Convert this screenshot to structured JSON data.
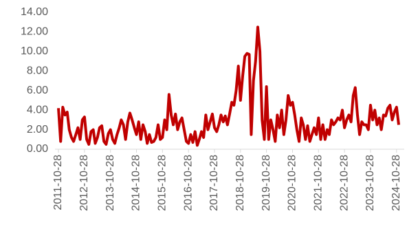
{
  "chart_data": {
    "type": "line",
    "x": [
      "2011-10-28",
      "2011-11-28",
      "2011-12-28",
      "2012-01-28",
      "2012-02-28",
      "2012-03-28",
      "2012-04-28",
      "2012-05-28",
      "2012-06-28",
      "2012-07-28",
      "2012-08-28",
      "2012-09-28",
      "2012-10-28",
      "2012-11-28",
      "2012-12-28",
      "2013-01-28",
      "2013-02-28",
      "2013-03-28",
      "2013-04-28",
      "2013-05-28",
      "2013-06-28",
      "2013-07-28",
      "2013-08-28",
      "2013-09-28",
      "2013-10-28",
      "2013-11-28",
      "2013-12-28",
      "2014-01-28",
      "2014-02-28",
      "2014-03-28",
      "2014-04-28",
      "2014-05-28",
      "2014-06-28",
      "2014-07-28",
      "2014-08-28",
      "2014-09-28",
      "2014-10-28",
      "2014-11-28",
      "2014-12-28",
      "2015-01-28",
      "2015-02-28",
      "2015-03-28",
      "2015-04-28",
      "2015-05-28",
      "2015-06-28",
      "2015-07-28",
      "2015-08-28",
      "2015-09-28",
      "2015-10-28",
      "2015-11-28",
      "2015-12-28",
      "2016-01-28",
      "2016-02-28",
      "2016-03-28",
      "2016-04-28",
      "2016-05-28",
      "2016-06-28",
      "2016-07-28",
      "2016-08-28",
      "2016-09-28",
      "2016-10-28",
      "2016-11-28",
      "2016-12-28",
      "2017-01-28",
      "2017-02-28",
      "2017-03-28",
      "2017-04-28",
      "2017-05-28",
      "2017-06-28",
      "2017-07-28",
      "2017-08-28",
      "2017-09-28",
      "2017-10-28",
      "2017-11-28",
      "2017-12-28",
      "2018-01-28",
      "2018-02-28",
      "2018-03-28",
      "2018-04-28",
      "2018-05-28",
      "2018-06-28",
      "2018-07-28",
      "2018-08-28",
      "2018-09-28",
      "2018-10-28",
      "2018-11-28",
      "2018-12-28",
      "2019-01-28",
      "2019-02-28",
      "2019-03-28",
      "2019-04-28",
      "2019-05-28",
      "2019-06-28",
      "2019-07-28",
      "2019-08-28",
      "2019-09-28",
      "2019-10-28",
      "2019-11-28",
      "2019-12-28",
      "2020-01-28",
      "2020-02-28",
      "2020-03-28",
      "2020-04-28",
      "2020-05-28",
      "2020-06-28",
      "2020-07-28",
      "2020-08-28",
      "2020-09-28",
      "2020-10-28",
      "2020-11-28",
      "2020-12-28",
      "2021-01-28",
      "2021-02-28",
      "2021-03-28",
      "2021-04-28",
      "2021-05-28",
      "2021-06-28",
      "2021-07-28",
      "2021-08-28",
      "2021-09-28",
      "2021-10-28",
      "2021-11-28",
      "2021-12-28",
      "2022-01-28",
      "2022-02-28",
      "2022-03-28",
      "2022-04-28",
      "2022-05-28",
      "2022-06-28",
      "2022-07-28",
      "2022-08-28",
      "2022-09-28",
      "2022-10-28",
      "2022-11-28",
      "2022-12-28",
      "2023-01-28",
      "2023-02-28",
      "2023-03-28",
      "2023-04-28",
      "2023-05-28",
      "2023-06-28",
      "2023-07-28",
      "2023-08-28",
      "2023-09-28",
      "2023-10-28",
      "2023-11-28",
      "2023-12-28",
      "2024-01-28",
      "2024-02-28",
      "2024-03-28",
      "2024-04-28",
      "2024-05-28",
      "2024-06-28",
      "2024-07-28",
      "2024-08-28",
      "2024-09-28",
      "2024-10-28",
      "2024-11-28"
    ],
    "series": [
      {
        "color": "#c00000",
        "values": [
          4.2,
          0.8,
          4.3,
          3.5,
          3.8,
          2.0,
          1.2,
          0.8,
          1.5,
          2.2,
          1.0,
          3.0,
          3.3,
          1.0,
          0.5,
          1.8,
          2.0,
          0.6,
          1.2,
          2.2,
          2.4,
          0.8,
          0.5,
          1.6,
          2.0,
          1.0,
          0.6,
          1.5,
          2.2,
          3.0,
          2.5,
          1.0,
          2.8,
          3.7,
          3.0,
          2.2,
          1.5,
          2.8,
          1.0,
          2.5,
          1.8,
          0.6,
          1.5,
          0.7,
          0.8,
          1.2,
          2.5,
          1.0,
          1.2,
          3.0,
          2.0,
          5.6,
          3.5,
          2.5,
          3.6,
          2.0,
          2.8,
          3.2,
          2.0,
          0.8,
          0.6,
          1.5,
          0.7,
          1.8,
          0.4,
          1.0,
          1.8,
          1.2,
          3.5,
          2.0,
          2.8,
          3.6,
          2.2,
          1.8,
          2.5,
          3.5,
          2.8,
          3.4,
          2.5,
          3.6,
          4.8,
          4.5,
          6.0,
          8.5,
          5.0,
          7.5,
          9.5,
          9.8,
          9.7,
          1.5,
          7.0,
          9.0,
          12.5,
          10.0,
          3.0,
          1.0,
          6.4,
          1.0,
          3.0,
          2.0,
          0.8,
          3.5,
          2.2,
          4.0,
          1.5,
          3.0,
          5.5,
          4.5,
          4.8,
          3.5,
          2.0,
          0.8,
          3.2,
          2.5,
          1.0,
          2.4,
          0.8,
          1.5,
          2.2,
          1.5,
          3.2,
          1.0,
          2.5,
          1.0,
          2.0,
          1.5,
          3.0,
          2.5,
          2.8,
          3.2,
          3.0,
          4.0,
          2.2,
          3.0,
          3.5,
          2.8,
          5.5,
          6.3,
          3.5,
          1.5,
          2.8,
          2.5,
          2.5,
          2.0,
          4.5,
          3.0,
          4.0,
          2.5,
          3.2,
          2.0,
          3.5,
          3.4,
          4.2,
          4.5,
          3.0,
          3.8,
          4.3,
          2.5
        ]
      }
    ],
    "xlim": [
      "2011-10-28",
      "2024-11-28"
    ],
    "xticks": [
      "2011-10-28",
      "2012-10-28",
      "2013-10-28",
      "2014-10-28",
      "2015-10-28",
      "2016-10-28",
      "2017-10-28",
      "2018-10-28",
      "2019-10-28",
      "2020-10-28",
      "2021-10-28",
      "2022-10-28",
      "2023-10-28",
      "2024-10-28"
    ],
    "ylim": [
      0,
      14
    ],
    "yticks": [
      {
        "value": 0,
        "label": "0.00"
      },
      {
        "value": 2,
        "label": "2.00"
      },
      {
        "value": 4,
        "label": "4.00"
      },
      {
        "value": 6,
        "label": "6.00"
      },
      {
        "value": 8,
        "label": "8.00"
      },
      {
        "value": 10,
        "label": "10.00"
      },
      {
        "value": 12,
        "label": "12.00"
      },
      {
        "value": 14,
        "label": "14.00"
      }
    ]
  }
}
